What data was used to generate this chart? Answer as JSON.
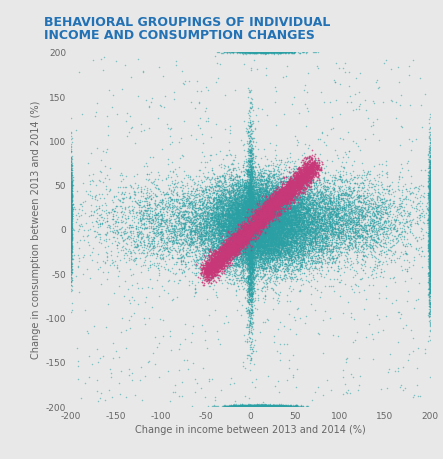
{
  "title_line1": "BEHAVIORAL GROUPINGS OF INDIVIDUAL",
  "title_line2": "INCOME AND CONSUMPTION CHANGES",
  "title_color": "#2272b5",
  "background_color": "#e8e8e8",
  "plot_bg_color": "#e8e8e8",
  "xlabel": "Change in income between 2013 and 2014 (%)",
  "ylabel": "Change in consumption between 2013 and 2014 (%)",
  "xlim": [
    -200,
    200
  ],
  "ylim": [
    -200,
    200
  ],
  "xticks": [
    -200,
    -150,
    -100,
    -50,
    0,
    50,
    100,
    150,
    200
  ],
  "yticks": [
    -200,
    -150,
    -100,
    -50,
    0,
    50,
    100,
    150,
    200
  ],
  "teal_color": "#2aa0a4",
  "dark_teal_color": "#1a6080",
  "magenta_color": "#c83878",
  "n_teal": 35000,
  "n_magenta": 6000,
  "point_size": 1.2,
  "point_alpha_teal": 0.55,
  "point_alpha_magenta": 0.8,
  "axis_label_fontsize": 7.0,
  "tick_fontsize": 6.5,
  "title_fontsize": 9.0
}
